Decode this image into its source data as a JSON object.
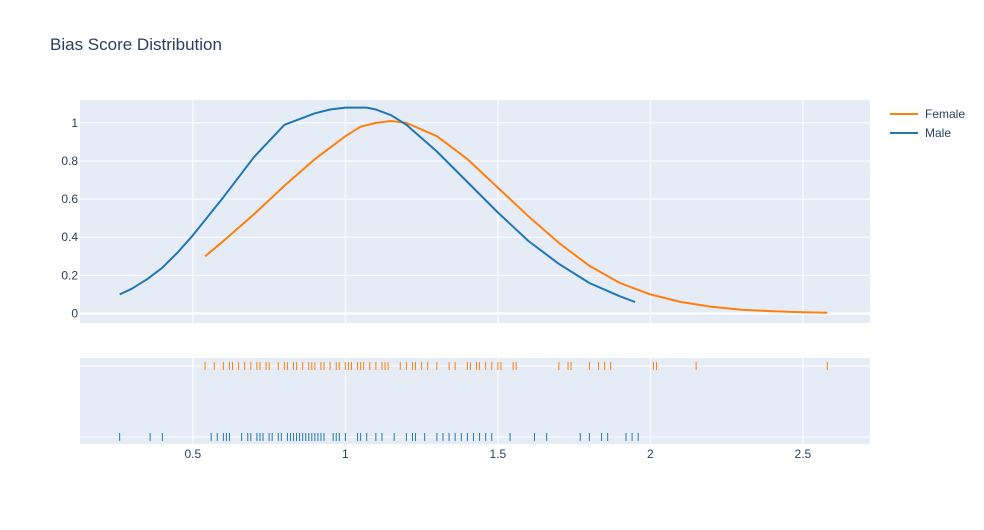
{
  "chart_data": {
    "type": "line",
    "title": "Bias Score Distribution",
    "xlabel": "",
    "ylabel": "",
    "xlim": [
      0.13,
      2.72
    ],
    "ylim": [
      -0.05,
      1.12
    ],
    "x_ticks": [
      0.5,
      1,
      1.5,
      2,
      2.5
    ],
    "x_tick_labels": [
      "0.5",
      "1",
      "1.5",
      "2",
      "2.5"
    ],
    "y_ticks": [
      0,
      0.2,
      0.4,
      0.6,
      0.8,
      1
    ],
    "y_tick_labels": [
      "0",
      "0.2",
      "0.4",
      "0.6",
      "0.8",
      "1"
    ],
    "grid": true,
    "legend_position": "top-right",
    "series": [
      {
        "name": "Female",
        "color": "#ff7f0e",
        "x": [
          0.54,
          0.6,
          0.7,
          0.8,
          0.9,
          1.0,
          1.05,
          1.1,
          1.15,
          1.2,
          1.3,
          1.4,
          1.5,
          1.6,
          1.7,
          1.8,
          1.9,
          2.0,
          2.1,
          2.2,
          2.3,
          2.4,
          2.5,
          2.58
        ],
        "y": [
          0.3,
          0.38,
          0.52,
          0.67,
          0.81,
          0.93,
          0.98,
          1.0,
          1.01,
          1.0,
          0.93,
          0.81,
          0.66,
          0.51,
          0.37,
          0.25,
          0.16,
          0.1,
          0.06,
          0.035,
          0.02,
          0.012,
          0.006,
          0.004
        ]
      },
      {
        "name": "Male",
        "color": "#1f77b4",
        "x": [
          0.26,
          0.3,
          0.35,
          0.4,
          0.45,
          0.5,
          0.55,
          0.6,
          0.7,
          0.8,
          0.9,
          0.95,
          1.0,
          1.05,
          1.07,
          1.1,
          1.15,
          1.2,
          1.3,
          1.4,
          1.5,
          1.6,
          1.7,
          1.8,
          1.9,
          1.95
        ],
        "y": [
          0.1,
          0.13,
          0.18,
          0.24,
          0.32,
          0.41,
          0.51,
          0.61,
          0.82,
          0.99,
          1.05,
          1.07,
          1.08,
          1.08,
          1.08,
          1.07,
          1.04,
          0.99,
          0.85,
          0.69,
          0.53,
          0.38,
          0.26,
          0.16,
          0.09,
          0.06
        ]
      }
    ],
    "rug": [
      {
        "name": "Female",
        "color": "#ff7f0e",
        "values": [
          0.54,
          0.57,
          0.6,
          0.62,
          0.63,
          0.65,
          0.67,
          0.69,
          0.71,
          0.72,
          0.74,
          0.75,
          0.78,
          0.8,
          0.81,
          0.83,
          0.84,
          0.86,
          0.88,
          0.89,
          0.9,
          0.92,
          0.93,
          0.95,
          0.97,
          0.98,
          1.0,
          1.01,
          1.02,
          1.04,
          1.05,
          1.06,
          1.08,
          1.1,
          1.12,
          1.13,
          1.14,
          1.18,
          1.2,
          1.22,
          1.23,
          1.25,
          1.27,
          1.3,
          1.34,
          1.36,
          1.4,
          1.41,
          1.43,
          1.44,
          1.46,
          1.48,
          1.5,
          1.51,
          1.55,
          1.56,
          1.7,
          1.73,
          1.74,
          1.8,
          1.83,
          1.85,
          1.87,
          2.01,
          2.02,
          2.15,
          2.58
        ]
      },
      {
        "name": "Male",
        "color": "#1f77b4",
        "values": [
          0.26,
          0.36,
          0.4,
          0.56,
          0.58,
          0.6,
          0.61,
          0.62,
          0.66,
          0.68,
          0.69,
          0.71,
          0.72,
          0.73,
          0.75,
          0.76,
          0.78,
          0.79,
          0.81,
          0.82,
          0.83,
          0.84,
          0.85,
          0.86,
          0.87,
          0.88,
          0.89,
          0.9,
          0.91,
          0.92,
          0.93,
          0.96,
          0.97,
          0.98,
          1.0,
          1.04,
          1.05,
          1.07,
          1.1,
          1.12,
          1.16,
          1.2,
          1.22,
          1.23,
          1.26,
          1.3,
          1.32,
          1.34,
          1.36,
          1.38,
          1.4,
          1.42,
          1.44,
          1.46,
          1.48,
          1.54,
          1.62,
          1.66,
          1.77,
          1.8,
          1.84,
          1.86,
          1.92,
          1.94,
          1.96
        ]
      }
    ]
  }
}
